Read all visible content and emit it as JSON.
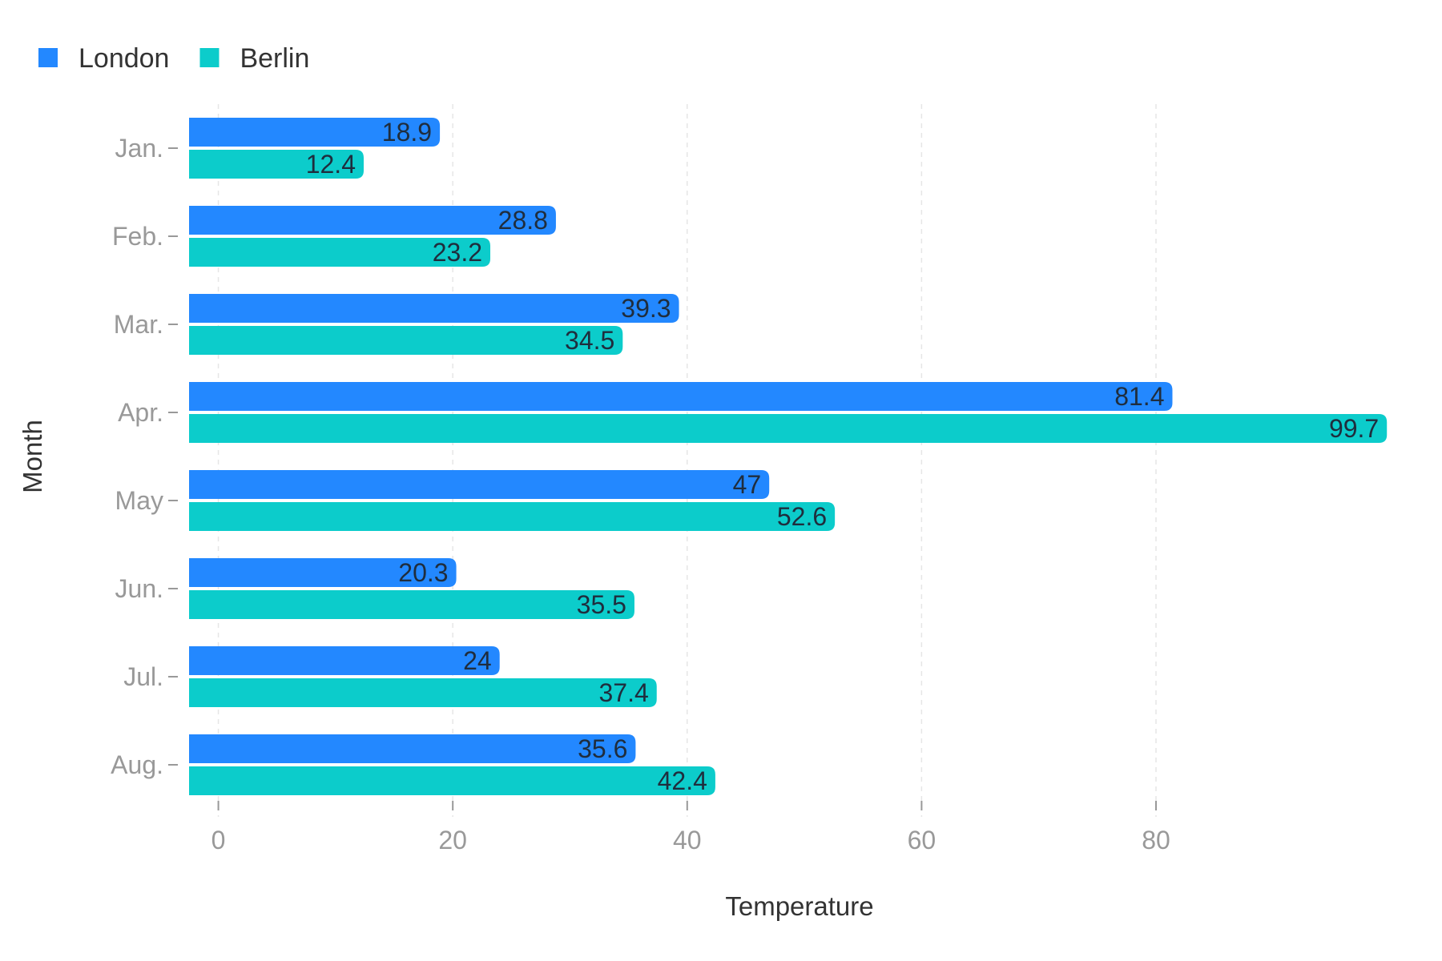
{
  "chart_data": {
    "type": "bar",
    "orientation": "horizontal",
    "title": "",
    "xlabel": "Temperature",
    "ylabel": "Month",
    "categories": [
      "Jan.",
      "Feb.",
      "Mar.",
      "Apr.",
      "May",
      "Jun.",
      "Jul.",
      "Aug."
    ],
    "series": [
      {
        "name": "London",
        "color": "#2388ff",
        "values": [
          18.9,
          28.8,
          39.3,
          81.4,
          47,
          20.3,
          24,
          35.6
        ]
      },
      {
        "name": "Berlin",
        "color": "#0ccccb",
        "values": [
          12.4,
          23.2,
          34.5,
          99.7,
          52.6,
          35.5,
          37.4,
          42.4
        ]
      }
    ],
    "xticks": [
      "0",
      "20",
      "40",
      "60",
      "80"
    ],
    "xlim": [
      -2.5,
      100.3
    ],
    "grid": "vertical dashed",
    "legend_position": "top-left",
    "data_labels": true
  }
}
